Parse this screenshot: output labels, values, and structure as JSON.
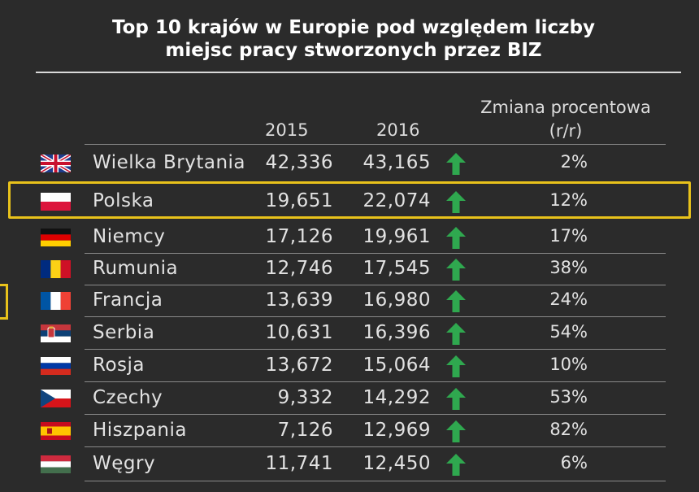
{
  "title_line1": "Top 10 krajów w Europie pod względem liczby",
  "title_line2": "miejsc pracy stworzonych przez BIZ",
  "headers": {
    "y2015": "2015",
    "y2016": "2016",
    "change_line1": "Zmiana procentowa",
    "change_line2": "(r/r)"
  },
  "accent_color": "#e8c21b",
  "arrow_color": "#2fa84f",
  "highlighted_country": "Polska",
  "chart_data": {
    "type": "table",
    "title": "Top 10 krajów w Europie pod względem liczby miejsc pracy stworzonych przez BIZ",
    "columns": [
      "",
      "2015",
      "2016",
      "",
      "Zmiana procentowa (r/r)"
    ],
    "rows": [
      {
        "country": "Wielka Brytania",
        "flag": "uk-flag-icon",
        "y2015": "42,336",
        "y2016": "43,165",
        "trend": "up-arrow-icon",
        "change": "2%"
      },
      {
        "country": "Polska",
        "flag": "poland-flag-icon",
        "y2015": "19,651",
        "y2016": "22,074",
        "trend": "up-arrow-icon",
        "change": "12%"
      },
      {
        "country": "Niemcy",
        "flag": "germany-flag-icon",
        "y2015": "17,126",
        "y2016": "19,961",
        "trend": "up-arrow-icon",
        "change": "17%"
      },
      {
        "country": "Rumunia",
        "flag": "romania-flag-icon",
        "y2015": "12,746",
        "y2016": "17,545",
        "trend": "up-arrow-icon",
        "change": "38%"
      },
      {
        "country": "Francja",
        "flag": "france-flag-icon",
        "y2015": "13,639",
        "y2016": "16,980",
        "trend": "up-arrow-icon",
        "change": "24%"
      },
      {
        "country": "Serbia",
        "flag": "serbia-flag-icon",
        "y2015": "10,631",
        "y2016": "16,396",
        "trend": "up-arrow-icon",
        "change": "54%"
      },
      {
        "country": "Rosja",
        "flag": "russia-flag-icon",
        "y2015": "13,672",
        "y2016": "15,064",
        "trend": "up-arrow-icon",
        "change": "10%"
      },
      {
        "country": "Czechy",
        "flag": "czech-flag-icon",
        "y2015": "9,332",
        "y2016": "14,292",
        "trend": "up-arrow-icon",
        "change": "53%"
      },
      {
        "country": "Hiszpania",
        "flag": "spain-flag-icon",
        "y2015": "7,126",
        "y2016": "12,969",
        "trend": "up-arrow-icon",
        "change": "82%"
      },
      {
        "country": "Węgry",
        "flag": "hungary-flag-icon",
        "y2015": "11,741",
        "y2016": "12,450",
        "trend": "up-arrow-icon",
        "change": "6%"
      }
    ]
  }
}
